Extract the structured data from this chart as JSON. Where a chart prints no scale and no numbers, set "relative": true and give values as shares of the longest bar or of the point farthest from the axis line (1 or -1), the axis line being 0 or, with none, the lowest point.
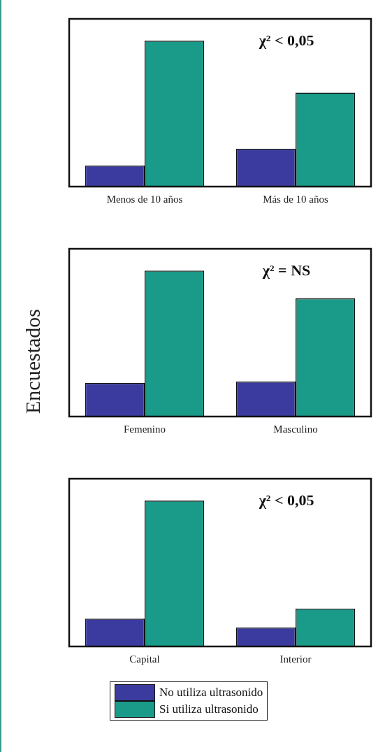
{
  "chart_data": [
    {
      "type": "bar",
      "relative": true,
      "categories": [
        "Menos de 10 años",
        "Más de 10 años"
      ],
      "series": [
        {
          "color": "#3b3b9f",
          "values": [
            0.145,
            0.26
          ]
        },
        {
          "color": "#1a9a88",
          "values": [
            1,
            0.645
          ]
        }
      ],
      "annotations": [
        "χ² < 0,05"
      ],
      "legend": false
    },
    {
      "type": "bar",
      "relative": true,
      "ylabel": "Encuestados",
      "categories": [
        "Femenino",
        "Masculino"
      ],
      "series": [
        {
          "color": "#3b3b9f",
          "values": [
            0.23,
            0.24
          ]
        },
        {
          "color": "#1a9a88",
          "values": [
            1,
            0.81
          ]
        }
      ],
      "annotations": [
        "χ² = NS"
      ],
      "legend": false
    },
    {
      "type": "bar",
      "relative": true,
      "categories": [
        "Capital",
        "Interior"
      ],
      "series": [
        {
          "name": "No utiliza ultrasonido",
          "color": "#3b3b9f",
          "values": [
            0.19,
            0.13
          ]
        },
        {
          "name": "Si utiliza ultrasonido",
          "color": "#1a9a88",
          "values": [
            1,
            0.26
          ]
        }
      ],
      "annotations": [
        "χ² < 0,05"
      ],
      "legend": "bottom"
    }
  ]
}
